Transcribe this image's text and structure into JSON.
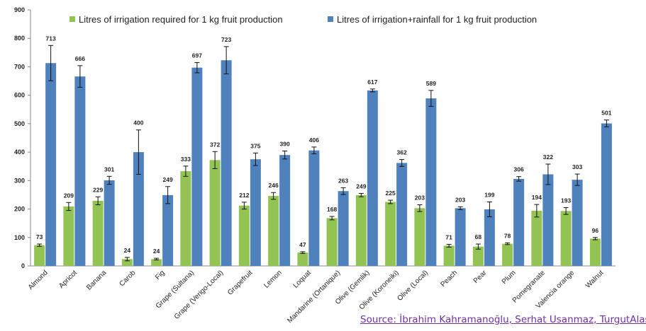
{
  "chart_data": {
    "type": "bar",
    "title": "",
    "xlabel": "",
    "ylabel": "",
    "ylim": [
      0,
      900
    ],
    "yticks": [
      0,
      100,
      200,
      300,
      400,
      500,
      600,
      700,
      800,
      900
    ],
    "grid": false,
    "legend_position": "top",
    "categories": [
      "Almond",
      "Apricot",
      "Banana",
      "Carob",
      "Fig",
      "Grape (Sultana)",
      "Grape (Verigo-Local)",
      "Grapefruit",
      "Lemon",
      "Loquat",
      "Mandarine (Ortanique)",
      "Olive (Gemlik)",
      "Olive (Koroneiki)",
      "Olive (Local)",
      "Peach",
      "Pear",
      "Plum",
      "Pomegranate",
      "Valencia orange",
      "Walnut"
    ],
    "series": [
      {
        "name": "Litres of irrigation required for 1 kg fruit production",
        "color": "#92c353",
        "values": [
          73,
          209,
          229,
          24,
          24,
          333,
          372,
          212,
          246,
          47,
          168,
          249,
          225,
          203,
          71,
          68,
          78,
          194,
          193,
          96
        ],
        "errors": [
          4,
          14,
          14,
          6,
          3,
          18,
          30,
          12,
          12,
          3,
          6,
          6,
          6,
          12,
          5,
          9,
          3,
          22,
          12,
          4
        ]
      },
      {
        "name": "Litres of irrigation+rainfall for 1 kg fruit production",
        "color": "#4f81bd",
        "values": [
          713,
          666,
          301,
          400,
          249,
          697,
          723,
          375,
          390,
          406,
          263,
          617,
          362,
          589,
          203,
          199,
          306,
          322,
          303,
          501
        ],
        "errors": [
          62,
          38,
          14,
          78,
          30,
          18,
          48,
          22,
          14,
          12,
          12,
          5,
          12,
          28,
          5,
          26,
          8,
          36,
          20,
          12
        ]
      }
    ]
  },
  "source": "Source: İbrahim Kahramanoğlu, Serhat Usanmaz, TurgutAlas"
}
